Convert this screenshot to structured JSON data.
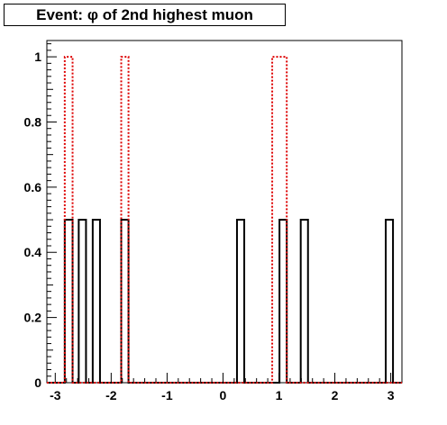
{
  "chart_data": {
    "type": "histogram",
    "title": "Event: φ of 2nd highest muon",
    "xlabel": "",
    "ylabel": "",
    "xlim": [
      -3.15,
      3.2
    ],
    "ylim": [
      0,
      1.05
    ],
    "x_ticks": [
      "-3",
      "-2",
      "-1",
      "0",
      "1",
      "2",
      "3"
    ],
    "x_tick_values": [
      -3,
      -2,
      -1,
      0,
      1,
      2,
      3
    ],
    "y_ticks": [
      "0",
      "0.2",
      "0.4",
      "0.6",
      "0.8",
      "1"
    ],
    "y_tick_values": [
      0,
      0.2,
      0.4,
      0.6,
      0.8,
      1
    ],
    "grid": false,
    "series": [
      {
        "color": "#000000",
        "style": "solid",
        "bins": [
          {
            "x0": -2.83,
            "x1": -2.69,
            "y": 0.5
          },
          {
            "x0": -2.58,
            "x1": -2.45,
            "y": 0.5
          },
          {
            "x0": -2.33,
            "x1": -2.2,
            "y": 0.5
          },
          {
            "x0": -1.82,
            "x1": -1.69,
            "y": 0.5
          },
          {
            "x0": 0.25,
            "x1": 0.38,
            "y": 0.5
          },
          {
            "x0": 1.01,
            "x1": 1.14,
            "y": 0.5
          },
          {
            "x0": 1.39,
            "x1": 1.52,
            "y": 0.5
          },
          {
            "x0": 2.91,
            "x1": 3.04,
            "y": 0.5
          }
        ]
      },
      {
        "color": "#dd0000",
        "style": "dotted",
        "bins": [
          {
            "x0": -2.83,
            "x1": -2.69,
            "y": 1
          },
          {
            "x0": -1.82,
            "x1": -1.69,
            "y": 1
          },
          {
            "x0": 0.88,
            "x1": 1.14,
            "y": 1
          }
        ]
      }
    ]
  }
}
